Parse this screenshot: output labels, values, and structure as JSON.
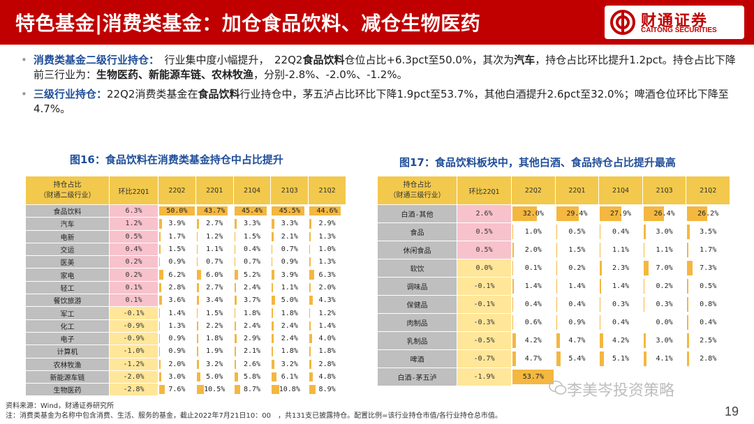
{
  "header": {
    "title": "特色基金|消费类基金：加仓食品饮料、减仓生物医药",
    "logo_cn": "财通证券",
    "logo_en": "CAITONG SECURITIES",
    "brand_color": "#c00000"
  },
  "bullets": [
    {
      "lead": "消费类基金二级行业持仓：",
      "t1": "　行业集中度小幅提升，　22Q2",
      "b1": "食品饮料",
      "t2": "仓位占比+6.3pct至50.0%，其次为",
      "b2": "汽车",
      "t3": "，持仓占比环比提升1.2pct。持仓占比下降前三行业为：",
      "b3": "生物医药、新能源车链、农林牧渔",
      "t4": "，分别-2.8%、-2.0%、-1.2%。"
    },
    {
      "lead": "三级行业持仓：",
      "t1": "22Q2消费类基金在",
      "b1": "食品饮料",
      "t2": "行业持仓中，茅五泸占比环比下降1.9pct至53.7%，其他白酒提升2.6pct至32.0%；啤酒仓位环比下降至4.7%。"
    }
  ],
  "fig16": {
    "title": "图16：食品饮料在消费类基金持仓中占比提升",
    "header_name": "持仓占比\n（财通二级行业）",
    "header_chg": "环比22Q1",
    "quarters": [
      "22Q2",
      "22Q1",
      "21Q4",
      "21Q3",
      "21Q2"
    ],
    "rows": [
      {
        "name": "食品饮料",
        "chg": "6.3%",
        "vals": [
          "50.0%",
          "43.7%",
          "45.4%",
          "45.5%",
          "44.6%"
        ],
        "nums": [
          50.0,
          43.7,
          45.4,
          45.5,
          44.6
        ]
      },
      {
        "name": "汽车",
        "chg": "1.2%",
        "vals": [
          "3.9%",
          "2.7%",
          "3.3%",
          "3.3%",
          "2.9%"
        ],
        "nums": [
          3.9,
          2.7,
          3.3,
          3.3,
          2.9
        ]
      },
      {
        "name": "电新",
        "chg": "0.5%",
        "vals": [
          "1.7%",
          "1.2%",
          "1.5%",
          "2.1%",
          "1.3%"
        ],
        "nums": [
          1.7,
          1.2,
          1.5,
          2.1,
          1.3
        ]
      },
      {
        "name": "交运",
        "chg": "0.4%",
        "vals": [
          "1.5%",
          "1.1%",
          "0.4%",
          "0.7%",
          "1.0%"
        ],
        "nums": [
          1.5,
          1.1,
          0.4,
          0.7,
          1.0
        ]
      },
      {
        "name": "医美",
        "chg": "0.2%",
        "vals": [
          "0.9%",
          "0.7%",
          "0.7%",
          "0.9%",
          "1.3%"
        ],
        "nums": [
          0.9,
          0.7,
          0.7,
          0.9,
          1.3
        ]
      },
      {
        "name": "家电",
        "chg": "0.2%",
        "vals": [
          "6.2%",
          "6.0%",
          "5.2%",
          "3.9%",
          "6.3%"
        ],
        "nums": [
          6.2,
          6.0,
          5.2,
          3.9,
          6.3
        ]
      },
      {
        "name": "轻工",
        "chg": "0.1%",
        "vals": [
          "2.8%",
          "2.7%",
          "2.4%",
          "1.1%",
          "2.0%"
        ],
        "nums": [
          2.8,
          2.7,
          2.4,
          1.1,
          2.0
        ]
      },
      {
        "name": "餐饮旅游",
        "chg": "0.1%",
        "vals": [
          "3.6%",
          "3.4%",
          "3.7%",
          "5.0%",
          "4.3%"
        ],
        "nums": [
          3.6,
          3.4,
          3.7,
          5.0,
          4.3
        ]
      },
      {
        "name": "军工",
        "chg": "-0.1%",
        "vals": [
          "1.4%",
          "1.5%",
          "1.8%",
          "1.8%",
          "1.2%"
        ],
        "nums": [
          1.4,
          1.5,
          1.8,
          1.8,
          1.2
        ]
      },
      {
        "name": "化工",
        "chg": "-0.9%",
        "vals": [
          "1.3%",
          "2.2%",
          "2.4%",
          "2.4%",
          "1.4%"
        ],
        "nums": [
          1.3,
          2.2,
          2.4,
          2.4,
          1.4
        ]
      },
      {
        "name": "电子",
        "chg": "-0.9%",
        "vals": [
          "0.9%",
          "1.8%",
          "2.9%",
          "2.4%",
          "4.0%"
        ],
        "nums": [
          0.9,
          1.8,
          2.9,
          2.4,
          4.0
        ]
      },
      {
        "name": "计算机",
        "chg": "-1.0%",
        "vals": [
          "0.9%",
          "1.9%",
          "2.1%",
          "1.8%",
          "1.8%"
        ],
        "nums": [
          0.9,
          1.9,
          2.1,
          1.8,
          1.8
        ]
      },
      {
        "name": "农林牧渔",
        "chg": "-1.2%",
        "vals": [
          "2.0%",
          "3.2%",
          "2.6%",
          "3.2%",
          "2.8%"
        ],
        "nums": [
          2.0,
          3.2,
          2.6,
          3.2,
          2.8
        ]
      },
      {
        "name": "新能源车链",
        "chg": "-2.0%",
        "vals": [
          "3.0%",
          "5.0%",
          "5.8%",
          "6.1%",
          "4.8%"
        ],
        "nums": [
          3.0,
          5.0,
          5.8,
          6.1,
          4.8
        ]
      },
      {
        "name": "生物医药",
        "chg": "-2.8%",
        "vals": [
          "7.6%",
          "10.5%",
          "8.7%",
          "10.8%",
          "8.9%"
        ],
        "nums": [
          7.6,
          10.5,
          8.7,
          10.8,
          8.9
        ]
      }
    ]
  },
  "fig17": {
    "title": "图17：食品饮料板块中，其他白酒、食品持仓占比提升最高",
    "header_name": "持仓占比\n（财通三级行业）",
    "header_chg": "环比22Q1",
    "quarters": [
      "22Q2",
      "22Q1",
      "21Q4",
      "21Q3",
      "21Q2"
    ],
    "rows": [
      {
        "name": "白酒-其他",
        "chg": "2.6%",
        "vals": [
          "32.0%",
          "29.4%",
          "27.9%",
          "26.4%",
          "26.2%"
        ],
        "nums": [
          32.0,
          29.4,
          27.9,
          26.4,
          26.2
        ]
      },
      {
        "name": "食品",
        "chg": "0.5%",
        "vals": [
          "1.0%",
          "0.5%",
          "0.4%",
          "3.0%",
          "3.5%"
        ],
        "nums": [
          1.0,
          0.5,
          0.4,
          3.0,
          3.5
        ]
      },
      {
        "name": "休闲食品",
        "chg": "0.5%",
        "vals": [
          "2.0%",
          "1.5%",
          "1.1%",
          "1.1%",
          "1.7%"
        ],
        "nums": [
          2.0,
          1.5,
          1.1,
          1.1,
          1.7
        ]
      },
      {
        "name": "软饮",
        "chg": "0.0%",
        "vals": [
          "0.1%",
          "0.2%",
          "2.3%",
          "7.0%",
          "7.3%"
        ],
        "nums": [
          0.1,
          0.2,
          2.3,
          7.0,
          7.3
        ]
      },
      {
        "name": "调味品",
        "chg": "-0.1%",
        "vals": [
          "1.4%",
          "1.4%",
          "1.4%",
          "0.2%",
          "0.5%"
        ],
        "nums": [
          1.4,
          1.4,
          1.4,
          0.2,
          0.5
        ]
      },
      {
        "name": "保健品",
        "chg": "-0.1%",
        "vals": [
          "0.4%",
          "0.4%",
          "0.3%",
          "0.3%",
          "0.8%"
        ],
        "nums": [
          0.4,
          0.4,
          0.3,
          0.3,
          0.8
        ]
      },
      {
        "name": "肉制品",
        "chg": "-0.3%",
        "vals": [
          "0.6%",
          "0.9%",
          "0.4%",
          "0.0%",
          "0.4%"
        ],
        "nums": [
          0.6,
          0.9,
          0.4,
          0.0,
          0.4
        ]
      },
      {
        "name": "乳制品",
        "chg": "-0.5%",
        "vals": [
          "4.2%",
          "4.7%",
          "4.2%",
          "3.0%",
          "2.5%"
        ],
        "nums": [
          4.2,
          4.7,
          4.2,
          3.0,
          2.5
        ]
      },
      {
        "name": "啤酒",
        "chg": "-0.7%",
        "vals": [
          "4.7%",
          "5.4%",
          "5.1%",
          "4.1%",
          "2.8%"
        ],
        "nums": [
          4.7,
          5.4,
          5.1,
          4.1,
          2.8
        ]
      },
      {
        "name": "白酒-茅五泸",
        "chg": "-1.9%",
        "vals": [
          "53.7%",
          "",
          "",
          "",
          ""
        ],
        "nums": [
          53.7,
          0,
          0,
          0,
          0
        ]
      }
    ]
  },
  "footer": {
    "source": "资料来源：Wind，财通证券研究所",
    "note": "注：消费类基金为名称中包含消费、生活、服务的基金，截止2022年7月21日10：00　，共131支已披露持仓。配置比例=该行业持仓市值/各行业持仓总市值。",
    "watermark": "李美岑投资策略",
    "page": "19"
  }
}
